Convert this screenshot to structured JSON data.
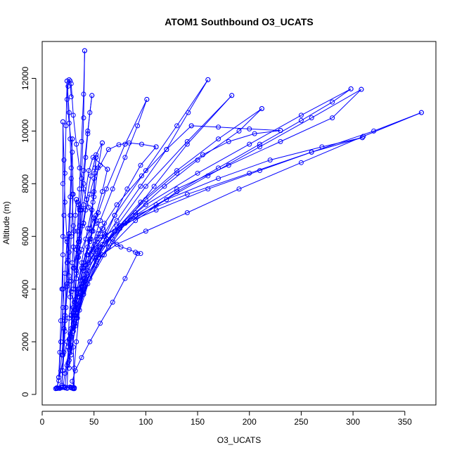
{
  "chart_data": {
    "type": "line",
    "title": "ATOM1 Southbound O3_UCATS",
    "xlabel": "O3_UCATS",
    "ylabel": "Altitude (m)",
    "xlim": [
      0,
      380
    ],
    "ylim": [
      -400,
      13400
    ],
    "x_ticks": [
      0,
      50,
      100,
      150,
      200,
      250,
      300,
      350
    ],
    "y_ticks": [
      0,
      2000,
      4000,
      6000,
      8000,
      10000,
      12000
    ],
    "x_tick_labels": [
      "0",
      "50",
      "100",
      "150",
      "200",
      "250",
      "300",
      "350"
    ],
    "y_tick_labels": [
      "0",
      "2000",
      "4000",
      "6000",
      "8000",
      "10000",
      "12000"
    ],
    "grid": false,
    "legend": "none",
    "marker": "open-circle",
    "series_color": "#0000FF",
    "series": [
      {
        "x": [
          14,
          16,
          19,
          22,
          26,
          28,
          30,
          29,
          26,
          24,
          25,
          26,
          27,
          28
        ],
        "y": [
          230,
          520,
          1500,
          3000,
          4500,
          6000,
          7600,
          9200,
          10300,
          11200,
          11700,
          11950,
          11900,
          11300
        ]
      },
      {
        "x": [
          28,
          30,
          33,
          36,
          40,
          45,
          52,
          60,
          68,
          76,
          84,
          90,
          95
        ],
        "y": [
          11800,
          10600,
          9500,
          8600,
          7800,
          7100,
          6500,
          6100,
          5800,
          5600,
          5500,
          5400,
          5350
        ]
      },
      {
        "x": [
          92,
          80,
          68,
          56,
          46,
          38,
          32,
          29,
          31
        ],
        "y": [
          5350,
          4400,
          3500,
          2700,
          2000,
          1400,
          900,
          500,
          220
        ]
      },
      {
        "x": [
          30,
          31,
          33,
          36,
          40,
          47,
          56,
          68,
          80,
          92,
          101
        ],
        "y": [
          220,
          1000,
          2000,
          3200,
          4400,
          5500,
          6600,
          7800,
          9000,
          10200,
          11200
        ]
      },
      {
        "x": [
          101,
          80,
          62,
          48,
          38,
          31,
          27,
          25,
          24
        ],
        "y": [
          11200,
          9500,
          7800,
          6200,
          4800,
          3500,
          2300,
          1200,
          230
        ]
      },
      {
        "x": [
          20,
          22,
          26,
          30,
          36,
          44,
          56,
          72,
          95,
          120,
          141,
          160
        ],
        "y": [
          280,
          800,
          1700,
          2700,
          3700,
          4700,
          5600,
          6600,
          7900,
          9300,
          10700,
          11950
        ]
      },
      {
        "x": [
          160,
          130,
          100,
          70,
          50,
          38,
          30,
          26,
          24,
          22
        ],
        "y": [
          11950,
          10200,
          8500,
          6800,
          5400,
          4200,
          3100,
          2100,
          1100,
          280
        ]
      },
      {
        "x": [
          14,
          18,
          24,
          32,
          44,
          60,
          80,
          108,
          140,
          183
        ],
        "y": [
          240,
          900,
          2000,
          3100,
          4200,
          5300,
          6500,
          7900,
          9500,
          11350
        ]
      },
      {
        "x": [
          183,
          140,
          100,
          72,
          52,
          40,
          32,
          28
        ],
        "y": [
          11350,
          9600,
          7900,
          6400,
          5200,
          3900,
          2700,
          1500
        ]
      },
      {
        "x": [
          28,
          32,
          40,
          52,
          68,
          90,
          118,
          150,
          190,
          212
        ],
        "y": [
          1500,
          2600,
          3800,
          4900,
          5900,
          6900,
          7900,
          8900,
          10000,
          10850
        ]
      },
      {
        "x": [
          212,
          170,
          130,
          95,
          70,
          52,
          40,
          33
        ],
        "y": [
          10850,
          9700,
          8500,
          7300,
          6200,
          5100,
          4000,
          2900
        ]
      },
      {
        "x": [
          33,
          40,
          55,
          75,
          100,
          130,
          155,
          180,
          205,
          230
        ],
        "y": [
          2900,
          4100,
          5300,
          6400,
          7400,
          8400,
          9100,
          9600,
          9900,
          10020
        ]
      },
      {
        "x": [
          230,
          200,
          170,
          144
        ],
        "y": [
          10020,
          10080,
          10150,
          10200
        ]
      },
      {
        "x": [
          144,
          120,
          96,
          72,
          54,
          42,
          34,
          30
        ],
        "y": [
          10200,
          9300,
          8300,
          7200,
          6100,
          4900,
          3700,
          2400
        ]
      },
      {
        "x": [
          30,
          40,
          58,
          90,
          130,
          170,
          210,
          250,
          280,
          298
        ],
        "y": [
          2400,
          3900,
          5300,
          6600,
          7700,
          8600,
          9500,
          10400,
          11100,
          11600
        ]
      },
      {
        "x": [
          298,
          250,
          200,
          150,
          100,
          70,
          50,
          38,
          32
        ],
        "y": [
          11600,
          10600,
          9500,
          8400,
          7200,
          6200,
          5200,
          4100,
          3000
        ]
      },
      {
        "x": [
          32,
          42,
          60,
          90,
          130,
          180,
          230,
          280,
          308
        ],
        "y": [
          3000,
          4400,
          5700,
          6800,
          7800,
          8700,
          9600,
          10500,
          11580
        ]
      },
      {
        "x": [
          308,
          260,
          210,
          160,
          110,
          75,
          52,
          40
        ],
        "y": [
          11580,
          10500,
          9400,
          8300,
          7200,
          6300,
          5500,
          4700
        ]
      },
      {
        "x": [
          40,
          55,
          80,
          120,
          170,
          220,
          270,
          309
        ],
        "y": [
          4700,
          5600,
          6500,
          7400,
          8200,
          8900,
          9400,
          9750
        ]
      },
      {
        "x": [
          309,
          260,
          210,
          160,
          110,
          75,
          55,
          44
        ],
        "y": [
          9750,
          9200,
          8500,
          7800,
          7000,
          6400,
          5900,
          5300
        ]
      },
      {
        "x": [
          44,
          60,
          90,
          140,
          200,
          260,
          320,
          366
        ],
        "y": [
          5300,
          6000,
          6800,
          7600,
          8400,
          9200,
          10000,
          10700
        ]
      },
      {
        "x": [
          366,
          310,
          250,
          190,
          140,
          100,
          72,
          54,
          42,
          33,
          28,
          26
        ],
        "y": [
          10700,
          9800,
          8800,
          7800,
          6900,
          6200,
          5700,
          5200,
          4300,
          3300,
          2200,
          1300
        ]
      },
      {
        "x": [
          26,
          34,
          46,
          58,
          70,
          82,
          95,
          110
        ],
        "y": [
          1300,
          2900,
          4400,
          5700,
          6800,
          7800,
          8700,
          9400
        ]
      },
      {
        "x": [
          110,
          96,
          84,
          74,
          64,
          56,
          50,
          46,
          42,
          40
        ],
        "y": [
          9400,
          9500,
          9550,
          9480,
          9300,
          8700,
          8200,
          7600,
          7000,
          6500
        ]
      },
      {
        "x": [
          40,
          34,
          30,
          28,
          26,
          25
        ],
        "y": [
          6500,
          5600,
          4800,
          3900,
          2900,
          1800
        ]
      },
      {
        "x": [
          25,
          32,
          38,
          44,
          50,
          54,
          58
        ],
        "y": [
          1800,
          3500,
          5000,
          6300,
          7500,
          8600,
          9550
        ]
      },
      {
        "x": [
          58,
          52,
          47,
          43,
          39,
          36,
          33
        ],
        "y": [
          9550,
          9100,
          8300,
          7400,
          6400,
          5400,
          4400
        ]
      },
      {
        "x": [
          33,
          36,
          40,
          45,
          49,
          63
        ],
        "y": [
          4400,
          5800,
          7200,
          8500,
          9000,
          8550
        ]
      },
      {
        "x": [
          63,
          58,
          52,
          46,
          40,
          35,
          31,
          28,
          26
        ],
        "y": [
          8550,
          7700,
          6800,
          5900,
          5000,
          4000,
          3000,
          2000,
          1000
        ]
      },
      {
        "x": [
          26,
          28,
          30,
          33,
          36,
          40,
          44,
          48
        ],
        "y": [
          1000,
          2500,
          4000,
          5500,
          7000,
          8500,
          10000,
          11350
        ]
      },
      {
        "x": [
          48,
          46,
          44,
          42,
          40,
          38,
          36
        ],
        "y": [
          11350,
          10700,
          9900,
          9000,
          8000,
          7000,
          5900
        ]
      },
      {
        "x": [
          36,
          38,
          40,
          41
        ],
        "y": [
          5900,
          8200,
          10500,
          13050
        ]
      },
      {
        "x": [
          41,
          40,
          38,
          36,
          34,
          33,
          32
        ],
        "y": [
          13050,
          11400,
          9600,
          7800,
          6200,
          4700,
          3200
        ]
      },
      {
        "x": [
          32,
          31,
          30,
          29,
          28,
          27,
          26,
          24
        ],
        "y": [
          3200,
          4800,
          6400,
          7600,
          8600,
          9700,
          10700,
          11900
        ]
      },
      {
        "x": [
          24,
          23,
          22,
          21,
          20,
          19,
          18,
          17,
          16
        ],
        "y": [
          11900,
          10200,
          8400,
          6800,
          5300,
          4000,
          2800,
          1600,
          650
        ]
      },
      {
        "x": [
          16,
          18,
          20,
          22,
          24,
          26
        ],
        "y": [
          650,
          2000,
          3300,
          4600,
          5900,
          6100
        ]
      },
      {
        "x": [
          26,
          25,
          24,
          23,
          22,
          21,
          20,
          19
        ],
        "y": [
          6100,
          5100,
          4200,
          3300,
          2400,
          1600,
          900,
          350
        ]
      },
      {
        "x": [
          19,
          21,
          24,
          27,
          29
        ],
        "y": [
          350,
          2500,
          5000,
          7500,
          9700
        ]
      },
      {
        "x": [
          29,
          28,
          27,
          26,
          24,
          22,
          20
        ],
        "y": [
          9700,
          8200,
          6800,
          5400,
          4100,
          2800,
          1500
        ]
      },
      {
        "x": [
          20,
          20,
          20,
          20,
          20
        ],
        "y": [
          1500,
          4000,
          6000,
          8000,
          10350
        ]
      },
      {
        "x": [
          20,
          21,
          22,
          24,
          26,
          28,
          30,
          31
        ],
        "y": [
          10350,
          8900,
          7300,
          5800,
          4300,
          3000,
          1800,
          250
        ]
      },
      {
        "x": [
          31,
          30,
          29,
          28,
          27
        ],
        "y": [
          250,
          260,
          240,
          250,
          280
        ]
      },
      {
        "x": [
          18,
          16,
          14,
          13,
          14,
          15,
          17,
          19,
          22,
          25,
          28,
          30
        ],
        "y": [
          270,
          240,
          240,
          220,
          250,
          230,
          230,
          260,
          250,
          260,
          270,
          240
        ]
      },
      {
        "x": [
          45,
          47,
          49,
          51,
          53,
          56,
          58,
          60,
          62,
          64
        ],
        "y": [
          5000,
          5300,
          5500,
          5700,
          5900,
          6100,
          6300,
          6500,
          5900,
          5600
        ]
      },
      {
        "x": [
          43,
          41,
          38,
          36,
          34,
          32,
          30,
          28
        ],
        "y": [
          4600,
          4400,
          4200,
          4000,
          3800,
          3600,
          3300,
          3000
        ]
      },
      {
        "x": [
          35,
          38,
          42,
          46,
          50,
          54
        ],
        "y": [
          5200,
          5500,
          5900,
          6300,
          6700,
          6900
        ]
      },
      {
        "x": [
          54,
          52,
          49,
          46,
          43,
          40,
          37
        ],
        "y": [
          6900,
          6600,
          6200,
          5800,
          5300,
          4800,
          4300
        ]
      },
      {
        "x": [
          47,
          49,
          51,
          52
        ],
        "y": [
          5900,
          7300,
          8600,
          9000
        ]
      },
      {
        "x": [
          52,
          51,
          50,
          48,
          46,
          44,
          42
        ],
        "y": [
          9000,
          8400,
          7700,
          7000,
          6300,
          5600,
          4900
        ]
      },
      {
        "x": [
          27,
          28,
          29,
          30,
          31,
          32,
          33
        ],
        "y": [
          3700,
          4300,
          5000,
          5600,
          6200,
          6800,
          7400
        ]
      },
      {
        "x": [
          33,
          34,
          35,
          36,
          37
        ],
        "y": [
          7400,
          7300,
          7200,
          7100,
          7000
        ]
      },
      {
        "x": [
          37,
          36,
          35,
          34,
          33,
          32,
          31
        ],
        "y": [
          7000,
          6400,
          5800,
          5200,
          4600,
          4000,
          3500
        ]
      }
    ]
  }
}
